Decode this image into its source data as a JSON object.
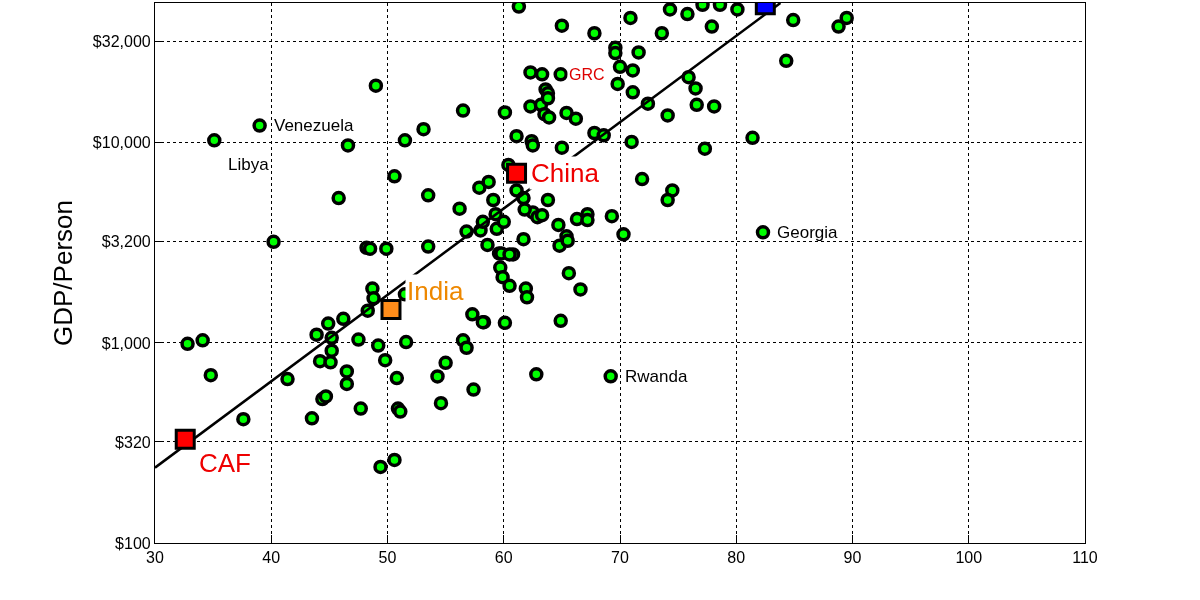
{
  "chart_data": {
    "type": "scatter",
    "ylabel": "GDP/Person",
    "log": "y",
    "grid": true,
    "xlim": [
      30,
      110
    ],
    "ylim": [
      100,
      50000
    ],
    "xticks": [
      30,
      40,
      50,
      60,
      70,
      80,
      90,
      100,
      110
    ],
    "yticks": [
      {
        "value": 100,
        "label": "$100"
      },
      {
        "value": 320,
        "label": "$320"
      },
      {
        "value": 1000,
        "label": "$1,000"
      },
      {
        "value": 3200,
        "label": "$3,200"
      },
      {
        "value": 10000,
        "label": "$10,000"
      },
      {
        "value": 32000,
        "label": "$32,000"
      }
    ],
    "series": [
      {
        "marker": "circle",
        "color": "#00ff00",
        "x": [
          32.8,
          34.1,
          34.8,
          35.1,
          37.6,
          39.0,
          40.2,
          41.4,
          43.5,
          43.9,
          44.2,
          44.4,
          44.7,
          44.9,
          45.2,
          45.2,
          45.1,
          45.8,
          46.2,
          46.6,
          46.5,
          46.5,
          47.5,
          47.7,
          48.2,
          48.5,
          48.7,
          48.8,
          49.0,
          48.3,
          49.2,
          49.4,
          49.9,
          49.8,
          50.6,
          50.6,
          50.9,
          51.1,
          50.8,
          51.5,
          51.5,
          51.6,
          53.1,
          53.5,
          53.5,
          54.3,
          54.6,
          55.0,
          56.2,
          56.5,
          56.5,
          56.8,
          56.8,
          57.3,
          57.4,
          57.9,
          58.0,
          58.3,
          58.7,
          59.1,
          59.3,
          59.4,
          59.6,
          59.7,
          59.9,
          60.1,
          60.5,
          60.8,
          60.4,
          61.1,
          61.1,
          61.7,
          61.7,
          61.9,
          62.0,
          62.3,
          63.3,
          62.3,
          62.4,
          62.5,
          62.5,
          62.9,
          62.8,
          63.2,
          63.5,
          63.9,
          63.6,
          63.8,
          63.8,
          64.9,
          65.4,
          66.2,
          65.0,
          67.8,
          68.6,
          71.0,
          77.3,
          81.4,
          74.1,
          76.6,
          78.1,
          75.9,
          76.5,
          72.4,
          71.1,
          71.1,
          71.6,
          69.6,
          69.6,
          70.0,
          69.8,
          84.3,
          84.9,
          88.8,
          89.5,
          65.0,
          67.8,
          70.9,
          73.6,
          74.3,
          75.8,
          77.9,
          61.3,
          77.1,
          78.6,
          80.1,
          60.0,
          58.2,
          61.8,
          63.3,
          63.8,
          64.7,
          65.4,
          64.8,
          65.5,
          66.3,
          67.2,
          67.2,
          69.3,
          70.3,
          71.9,
          74.5,
          74.1,
          58.6,
          59.8,
          60.5,
          66.6,
          64.9,
          60.1,
          58.2,
          65.6,
          82.3,
          69.2
        ],
        "values": [
          990,
          1030,
          690,
          10300,
          416,
          12200,
          3200,
          660,
          420,
          1100,
          810,
          524,
          540,
          1250,
          1060,
          915,
          800,
          5300,
          1320,
          9700,
          720,
          624,
          1040,
          470,
          2990,
          2960,
          1870,
          1670,
          19300,
          1450,
          970,
          240,
          2960,
          820,
          6800,
          260,
          470,
          454,
          667,
          1750,
          10300,
          1010,
          11700,
          5470,
          3030,
          680,
          500,
          795,
          4690,
          14500,
          1030,
          3600,
          946,
          1390,
          585,
          5970,
          3650,
          1270,
          6380,
          5180,
          4400,
          3720,
          2800,
          2380,
          2130,
          14200,
          1930,
          2770,
          7760,
          10800,
          5780,
          5300,
          3300,
          1870,
          1690,
          22500,
          22000,
          15200,
          10200,
          9700,
          4490,
          4250,
          697,
          15500,
          13900,
          13400,
          18500,
          17700,
          16700,
          22000,
          14100,
          13200,
          9460,
          11200,
          10900,
          10100,
          9350,
          10600,
          13700,
          15500,
          15200,
          21300,
          18700,
          15700,
          17900,
          23000,
          28300,
          29900,
          28100,
          24000,
          19700,
          25700,
          41100,
          38100,
          42100,
          38500,
          35300,
          42100,
          35300,
          46400,
          44000,
          38100,
          48000,
          49000,
          49000,
          46400,
          4030,
          4030,
          4640,
          4350,
          5180,
          3890,
          3410,
          3060,
          3240,
          4160,
          4400,
          4110,
          4300,
          3490,
          6590,
          5780,
          5180,
          3090,
          2800,
          2770,
          1850,
          1290,
          1260,
          1270,
          2230,
          3570,
          681
        ]
      },
      {
        "type": "line",
        "marker": "none",
        "color": "#000000",
        "x": [
          30,
          83.8
        ],
        "values": [
          238,
          50000
        ]
      },
      {
        "marker": "square",
        "x": [
          32.6,
          50.3,
          61.1,
          82.5
        ],
        "values": [
          330,
          1470,
          7050,
          49000
        ],
        "colors": [
          "#ff0000",
          "#ff8c1a",
          "#ff0000",
          "#0000ff"
        ]
      }
    ],
    "annotations": [
      {
        "text": "Venezuela",
        "x": 39.0,
        "y": 12200
      },
      {
        "text": "Libya",
        "x": 35.1,
        "y": 10300
      },
      {
        "text": "GRC",
        "x": 64.9,
        "y": 22000
      },
      {
        "text": "China",
        "x": 61.1,
        "y": 7050
      },
      {
        "text": "Georgia",
        "x": 82.3,
        "y": 3570
      },
      {
        "text": "India",
        "x": 50.3,
        "y": 1470
      },
      {
        "text": "Rwanda",
        "x": 69.2,
        "y": 681
      },
      {
        "text": "CAF",
        "x": 32.6,
        "y": 330
      }
    ]
  }
}
